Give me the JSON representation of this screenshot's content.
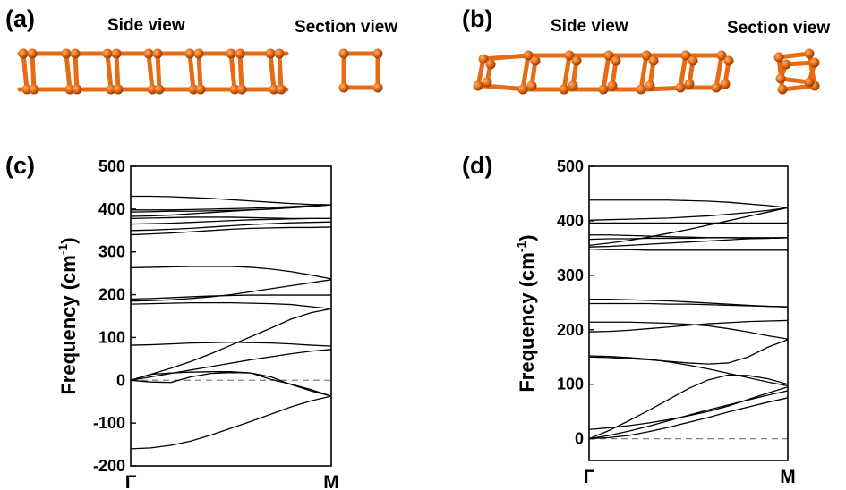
{
  "panels": {
    "a": {
      "label": "(a)",
      "side_title": "Side view",
      "section_title": "Section view"
    },
    "b": {
      "label": "(b)",
      "side_title": "Side view",
      "section_title": "Section view"
    },
    "c": {
      "label": "(c)"
    },
    "d": {
      "label": "(d)"
    }
  },
  "colors": {
    "atom": "#e2660f",
    "bond": "#e86b14",
    "curve": "#000000",
    "zero_line": "#808080"
  },
  "chart_data": [
    {
      "panel": "(c)",
      "type": "line",
      "xlabel": "",
      "ylabel": "Frequency (cm-1)",
      "ylabel_parts": {
        "main": "Frequency (cm",
        "sup": "-1",
        "close": ")"
      },
      "ylim": [
        -200,
        500
      ],
      "yticks": [
        -200,
        -100,
        0,
        100,
        200,
        300,
        400,
        500
      ],
      "xticks": [
        "Γ",
        "M"
      ],
      "xlim": [
        0,
        1
      ],
      "reference_line": {
        "y": 0,
        "style": "dashed"
      },
      "series": [
        {
          "x": [
            0,
            0.1,
            0.2,
            0.3,
            0.4,
            0.5,
            0.6,
            0.7,
            0.8,
            0.9,
            1
          ],
          "y": [
            -160,
            -158,
            -152,
            -142,
            -128,
            -112,
            -96,
            -79,
            -62,
            -48,
            -37
          ]
        },
        {
          "x": [
            0,
            0.1,
            0.2,
            0.3,
            0.4,
            0.5,
            0.6,
            0.7,
            0.8,
            0.9,
            1
          ],
          "y": [
            0,
            -4,
            -5,
            8,
            16,
            18,
            17,
            8,
            -10,
            -25,
            -37
          ]
        },
        {
          "x": [
            0,
            0.1,
            0.2,
            0.3,
            0.4,
            0.5,
            0.6,
            0.7,
            0.8,
            0.9,
            1
          ],
          "y": [
            0,
            14,
            17,
            19,
            20,
            20,
            17,
            2,
            -9,
            -22,
            -37
          ]
        },
        {
          "x": [
            0,
            0.1,
            0.2,
            0.3,
            0.4,
            0.5,
            0.6,
            0.7,
            0.8,
            0.9,
            1
          ],
          "y": [
            0,
            8,
            16,
            24,
            32,
            40,
            48,
            55,
            62,
            68,
            72
          ]
        },
        {
          "x": [
            0,
            0.1,
            0.2,
            0.3,
            0.4,
            0.5,
            0.6,
            0.7,
            0.8,
            0.9,
            1
          ],
          "y": [
            0,
            14,
            28,
            44,
            62,
            82,
            102,
            122,
            143,
            158,
            167
          ]
        },
        {
          "x": [
            0,
            0.1,
            0.2,
            0.3,
            0.4,
            0.5,
            0.6,
            0.7,
            0.8,
            0.9,
            1
          ],
          "y": [
            82,
            83,
            85,
            87,
            88,
            89,
            88,
            87,
            85,
            82,
            80
          ]
        },
        {
          "x": [
            0,
            0.1,
            0.2,
            0.3,
            0.4,
            0.5,
            0.6,
            0.7,
            0.8,
            0.9,
            1
          ],
          "y": [
            178,
            179,
            180,
            181,
            181,
            181,
            180,
            179,
            177,
            172,
            167
          ]
        },
        {
          "x": [
            0,
            0.1,
            0.2,
            0.3,
            0.4,
            0.5,
            0.6,
            0.7,
            0.8,
            0.9,
            1
          ],
          "y": [
            185,
            186,
            188,
            191,
            195,
            200,
            207,
            214,
            221,
            228,
            235
          ]
        },
        {
          "x": [
            0,
            0.1,
            0.2,
            0.3,
            0.4,
            0.5,
            0.6,
            0.7,
            0.8,
            0.9,
            1
          ],
          "y": [
            190,
            191,
            193,
            195,
            197,
            198,
            199,
            199,
            199,
            199,
            199
          ]
        },
        {
          "x": [
            0,
            0.1,
            0.2,
            0.3,
            0.4,
            0.5,
            0.6,
            0.7,
            0.8,
            0.9,
            1
          ],
          "y": [
            263,
            264,
            265,
            266,
            266,
            266,
            264,
            260,
            254,
            246,
            237
          ]
        },
        {
          "x": [
            0,
            0.1,
            0.2,
            0.3,
            0.4,
            0.5,
            0.6,
            0.7,
            0.8,
            0.9,
            1
          ],
          "y": [
            340,
            342,
            344,
            347,
            350,
            353,
            355,
            356,
            357,
            357,
            358
          ]
        },
        {
          "x": [
            0,
            0.1,
            0.2,
            0.3,
            0.4,
            0.5,
            0.6,
            0.7,
            0.8,
            0.9,
            1
          ],
          "y": [
            350,
            351,
            353,
            355,
            358,
            361,
            364,
            366,
            368,
            369,
            370
          ]
        },
        {
          "x": [
            0,
            0.1,
            0.2,
            0.3,
            0.4,
            0.5,
            0.6,
            0.7,
            0.8,
            0.9,
            1
          ],
          "y": [
            365,
            366,
            367,
            369,
            371,
            373,
            375,
            376,
            377,
            378,
            378
          ]
        },
        {
          "x": [
            0,
            0.1,
            0.2,
            0.3,
            0.4,
            0.5,
            0.6,
            0.7,
            0.8,
            0.9,
            1
          ],
          "y": [
            378,
            379,
            380,
            381,
            381,
            381,
            380,
            379,
            378,
            378,
            378
          ]
        },
        {
          "x": [
            0,
            0.1,
            0.2,
            0.3,
            0.4,
            0.5,
            0.6,
            0.7,
            0.8,
            0.9,
            1
          ],
          "y": [
            383,
            384,
            386,
            389,
            392,
            395,
            398,
            401,
            404,
            407,
            410
          ]
        },
        {
          "x": [
            0,
            0.1,
            0.2,
            0.3,
            0.4,
            0.5,
            0.6,
            0.7,
            0.8,
            0.9,
            1
          ],
          "y": [
            393,
            394,
            395,
            395,
            396,
            397,
            398,
            400,
            403,
            406,
            410
          ]
        },
        {
          "x": [
            0,
            0.1,
            0.2,
            0.3,
            0.4,
            0.5,
            0.6,
            0.7,
            0.8,
            0.9,
            1
          ],
          "y": [
            398,
            398,
            398,
            399,
            400,
            401,
            402,
            404,
            406,
            408,
            410
          ]
        },
        {
          "x": [
            0,
            0.1,
            0.2,
            0.3,
            0.4,
            0.5,
            0.6,
            0.7,
            0.8,
            0.9,
            1
          ],
          "y": [
            430,
            430,
            429,
            427,
            425,
            422,
            419,
            416,
            413,
            411,
            410
          ]
        }
      ]
    },
    {
      "panel": "(d)",
      "type": "line",
      "xlabel": "",
      "ylabel": "Frequency (cm-1)",
      "ylabel_parts": {
        "main": "Frequency (cm",
        "sup": "-1",
        "close": ")"
      },
      "ylim": [
        -40,
        500
      ],
      "yticks": [
        0,
        100,
        200,
        300,
        400,
        500
      ],
      "xticks": [
        "Γ",
        "M"
      ],
      "xlim": [
        0,
        1
      ],
      "reference_line": {
        "y": 0,
        "style": "dashed"
      },
      "series": [
        {
          "x": [
            0,
            0.1,
            0.2,
            0.3,
            0.4,
            0.5,
            0.6,
            0.7,
            0.8,
            0.9,
            1
          ],
          "y": [
            0,
            2,
            6,
            13,
            21,
            30,
            39,
            49,
            58,
            67,
            75
          ]
        },
        {
          "x": [
            0,
            0.1,
            0.2,
            0.3,
            0.4,
            0.5,
            0.6,
            0.7,
            0.8,
            0.9,
            1
          ],
          "y": [
            0,
            6,
            14,
            23,
            33,
            43,
            53,
            62,
            71,
            80,
            88
          ]
        },
        {
          "x": [
            0,
            0.1,
            0.2,
            0.3,
            0.4,
            0.5,
            0.6,
            0.7,
            0.8,
            0.9,
            1
          ],
          "y": [
            17,
            20,
            24,
            29,
            35,
            42,
            50,
            60,
            72,
            84,
            95
          ]
        },
        {
          "x": [
            0,
            0.1,
            0.2,
            0.3,
            0.4,
            0.5,
            0.6,
            0.7,
            0.8,
            0.9,
            1
          ],
          "y": [
            0,
            15,
            33,
            52,
            72,
            92,
            108,
            117,
            116,
            110,
            100
          ]
        },
        {
          "x": [
            0,
            0.1,
            0.2,
            0.3,
            0.4,
            0.5,
            0.6,
            0.7,
            0.8,
            0.9,
            1
          ],
          "y": [
            150,
            149,
            147,
            145,
            142,
            139,
            137,
            139,
            150,
            168,
            182
          ]
        },
        {
          "x": [
            0,
            0.1,
            0.2,
            0.3,
            0.4,
            0.5,
            0.6,
            0.7,
            0.8,
            0.9,
            1
          ],
          "y": [
            152,
            151,
            149,
            146,
            141,
            135,
            128,
            120,
            112,
            104,
            97
          ]
        },
        {
          "x": [
            0,
            0.1,
            0.2,
            0.3,
            0.4,
            0.5,
            0.6,
            0.7,
            0.8,
            0.9,
            1
          ],
          "y": [
            196,
            197,
            199,
            202,
            205,
            208,
            211,
            213,
            215,
            216,
            217
          ]
        },
        {
          "x": [
            0,
            0.1,
            0.2,
            0.3,
            0.4,
            0.5,
            0.6,
            0.7,
            0.8,
            0.9,
            1
          ],
          "y": [
            214,
            214,
            214,
            213,
            212,
            210,
            207,
            202,
            196,
            189,
            183
          ]
        },
        {
          "x": [
            0,
            0.1,
            0.2,
            0.3,
            0.4,
            0.5,
            0.6,
            0.7,
            0.8,
            0.9,
            1
          ],
          "y": [
            248,
            248,
            248,
            248,
            247,
            247,
            246,
            245,
            244,
            243,
            242
          ]
        },
        {
          "x": [
            0,
            0.1,
            0.2,
            0.3,
            0.4,
            0.5,
            0.6,
            0.7,
            0.8,
            0.9,
            1
          ],
          "y": [
            256,
            256,
            255,
            254,
            253,
            251,
            249,
            247,
            245,
            243,
            242
          ]
        },
        {
          "x": [
            0,
            0.1,
            0.2,
            0.3,
            0.4,
            0.5,
            0.6,
            0.7,
            0.8,
            0.9,
            1
          ],
          "y": [
            348,
            347,
            347,
            346,
            346,
            346,
            346,
            346,
            346,
            346,
            346
          ]
        },
        {
          "x": [
            0,
            0.1,
            0.2,
            0.3,
            0.4,
            0.5,
            0.6,
            0.7,
            0.8,
            0.9,
            1
          ],
          "y": [
            352,
            353,
            355,
            357,
            359,
            361,
            363,
            365,
            367,
            368,
            369
          ]
        },
        {
          "x": [
            0,
            0.1,
            0.2,
            0.3,
            0.4,
            0.5,
            0.6,
            0.7,
            0.8,
            0.9,
            1
          ],
          "y": [
            355,
            359,
            364,
            370,
            377,
            384,
            392,
            400,
            408,
            416,
            424
          ]
        },
        {
          "x": [
            0,
            0.1,
            0.2,
            0.3,
            0.4,
            0.5,
            0.6,
            0.7,
            0.8,
            0.9,
            1
          ],
          "y": [
            366,
            367,
            367,
            368,
            368,
            368,
            369,
            369,
            369,
            369,
            369
          ]
        },
        {
          "x": [
            0,
            0.1,
            0.2,
            0.3,
            0.4,
            0.5,
            0.6,
            0.7,
            0.8,
            0.9,
            1
          ],
          "y": [
            374,
            374,
            373,
            372,
            371,
            370,
            369,
            369,
            368,
            368,
            369
          ]
        },
        {
          "x": [
            0,
            0.1,
            0.2,
            0.3,
            0.4,
            0.5,
            0.6,
            0.7,
            0.8,
            0.9,
            1
          ],
          "y": [
            396,
            396,
            396,
            396,
            396,
            396,
            396,
            396,
            396,
            396,
            396
          ]
        },
        {
          "x": [
            0,
            0.1,
            0.2,
            0.3,
            0.4,
            0.5,
            0.6,
            0.7,
            0.8,
            0.9,
            1
          ],
          "y": [
            401,
            402,
            403,
            404,
            405,
            407,
            409,
            412,
            415,
            419,
            424
          ]
        },
        {
          "x": [
            0,
            0.1,
            0.2,
            0.3,
            0.4,
            0.5,
            0.6,
            0.7,
            0.8,
            0.9,
            1
          ],
          "y": [
            438,
            438,
            438,
            438,
            438,
            437,
            436,
            434,
            431,
            428,
            424
          ]
        }
      ]
    }
  ]
}
